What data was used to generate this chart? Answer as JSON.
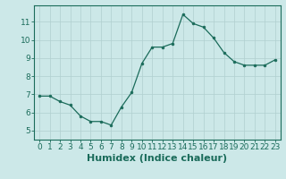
{
  "x": [
    0,
    1,
    2,
    3,
    4,
    5,
    6,
    7,
    8,
    9,
    10,
    11,
    12,
    13,
    14,
    15,
    16,
    17,
    18,
    19,
    20,
    21,
    22,
    23
  ],
  "y": [
    6.9,
    6.9,
    6.6,
    6.4,
    5.8,
    5.5,
    5.5,
    5.3,
    6.3,
    7.1,
    8.7,
    9.6,
    9.6,
    9.8,
    11.4,
    10.9,
    10.7,
    10.1,
    9.3,
    8.8,
    8.6,
    8.6,
    8.6,
    8.9
  ],
  "xlabel": "Humidex (Indice chaleur)",
  "ylim": [
    4.5,
    11.9
  ],
  "xlim": [
    -0.5,
    23.5
  ],
  "yticks": [
    5,
    6,
    7,
    8,
    9,
    10,
    11
  ],
  "xtick_labels": [
    "0",
    "1",
    "2",
    "3",
    "4",
    "5",
    "6",
    "7",
    "8",
    "9",
    "10",
    "11",
    "12",
    "13",
    "14",
    "15",
    "16",
    "17",
    "18",
    "19",
    "20",
    "21",
    "22",
    "23"
  ],
  "line_color": "#1a6b5a",
  "marker_color": "#1a6b5a",
  "bg_color": "#cce8e8",
  "grid_color": "#b0cfcf",
  "xlabel_fontsize": 8,
  "tick_fontsize": 6.5
}
